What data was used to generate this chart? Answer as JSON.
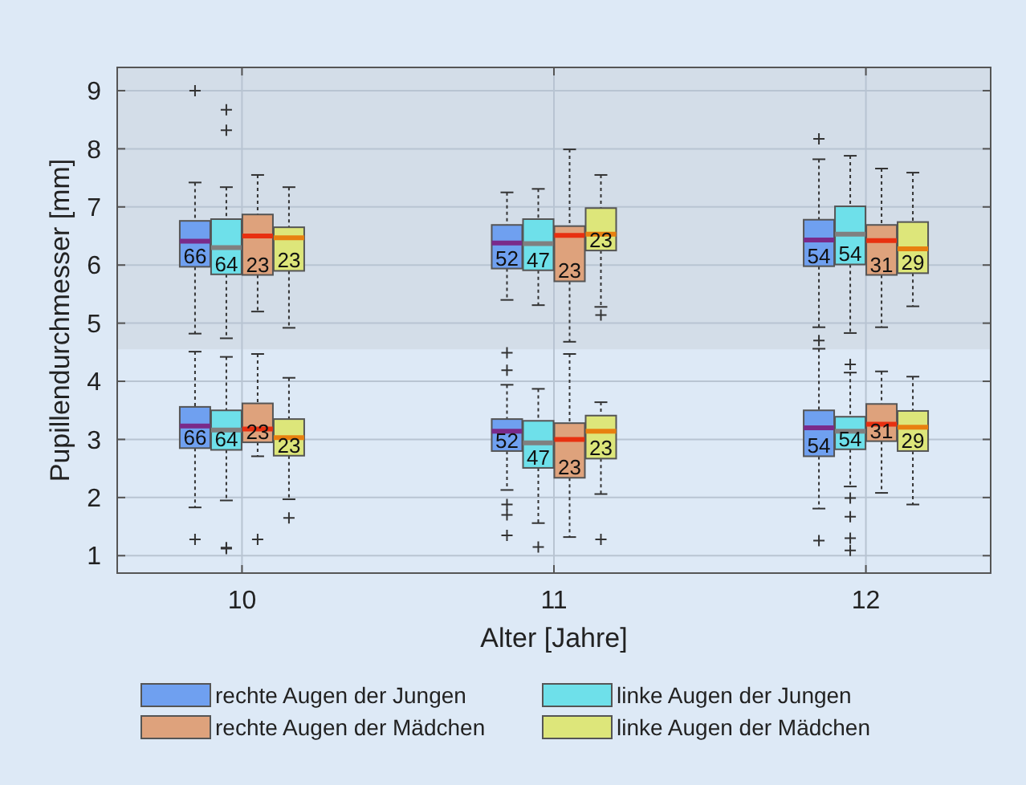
{
  "chart_data": {
    "type": "box",
    "xlabel": "Alter [Jahre]",
    "ylabel": "Pupillendurchmesser [mm]",
    "categories": [
      "10",
      "11",
      "12"
    ],
    "ylim": [
      0.7,
      9.4
    ],
    "yticks": [
      1,
      2,
      3,
      4,
      5,
      6,
      7,
      8,
      9
    ],
    "grid": true,
    "legend": "bottom",
    "bands": [
      {
        "axis": "y",
        "from": 4.55,
        "to": 9.4,
        "color": "#d3dde8"
      }
    ],
    "series": [
      {
        "name": "rechte Augen der Jungen",
        "color": "#6fa0f0",
        "value_labels": [
          "66",
          "52",
          "54"
        ],
        "boxes": [
          {
            "low": 4.82,
            "q1": 5.97,
            "median": 6.41,
            "q3": 6.76,
            "high": 7.42,
            "outliers": [
              9.0
            ]
          },
          {
            "low": 5.4,
            "q1": 5.94,
            "median": 6.38,
            "q3": 6.69,
            "high": 7.25
          },
          {
            "low": 4.93,
            "q1": 5.98,
            "median": 6.43,
            "q3": 6.78,
            "high": 7.82,
            "outliers": [
              8.17
            ]
          }
        ]
      },
      {
        "name": "linke Augen der Jungen",
        "color": "#6ee0ea",
        "value_labels": [
          "64",
          "47",
          "54"
        ],
        "boxes": [
          {
            "low": 4.74,
            "q1": 5.84,
            "median": 6.3,
            "q3": 6.79,
            "high": 7.34,
            "outliers": [
              8.67,
              8.32
            ]
          },
          {
            "low": 5.31,
            "q1": 5.91,
            "median": 6.37,
            "q3": 6.79,
            "high": 7.31
          },
          {
            "low": 4.83,
            "q1": 6.01,
            "median": 6.53,
            "q3": 7.01,
            "high": 7.88
          }
        ]
      },
      {
        "name": "rechte Augen der Mädchen",
        "color": "#dea27c",
        "value_labels": [
          "23",
          "23",
          "31"
        ],
        "boxes": [
          {
            "low": 5.2,
            "q1": 5.83,
            "median": 6.5,
            "q3": 6.87,
            "high": 7.55
          },
          {
            "low": 4.68,
            "q1": 5.72,
            "median": 6.51,
            "q3": 6.67,
            "high": 7.99
          },
          {
            "low": 4.93,
            "q1": 5.83,
            "median": 6.42,
            "q3": 6.69,
            "high": 7.66
          }
        ]
      },
      {
        "name": "linke Augen der Mädchen",
        "color": "#dde67a",
        "value_labels": [
          "23",
          "23",
          "29"
        ],
        "boxes": [
          {
            "low": 4.92,
            "q1": 5.9,
            "median": 6.47,
            "q3": 6.65,
            "high": 7.34
          },
          {
            "low": 5.28,
            "q1": 6.25,
            "median": 6.53,
            "q3": 6.98,
            "high": 7.55,
            "outliers": [
              5.14
            ]
          },
          {
            "low": 5.29,
            "q1": 5.86,
            "median": 6.28,
            "q3": 6.74,
            "high": 7.59
          }
        ]
      },
      {
        "color": "#6fa0f0",
        "value_labels": [
          "66",
          "52",
          "54"
        ],
        "boxes": [
          {
            "low": 1.83,
            "q1": 2.85,
            "median": 3.23,
            "q3": 3.56,
            "high": 4.51,
            "outliers": [
              1.28
            ]
          },
          {
            "low": 2.13,
            "q1": 2.8,
            "median": 3.14,
            "q3": 3.35,
            "high": 3.94,
            "outliers": [
              4.49,
              4.19,
              1.88,
              1.7,
              1.35
            ]
          },
          {
            "low": 1.81,
            "q1": 2.71,
            "median": 3.2,
            "q3": 3.5,
            "high": 4.56,
            "outliers": [
              4.7,
              1.26
            ]
          }
        ]
      },
      {
        "color": "#6ee0ea",
        "value_labels": [
          "64",
          "47",
          "54"
        ],
        "boxes": [
          {
            "low": 1.95,
            "q1": 2.82,
            "median": 3.16,
            "q3": 3.5,
            "high": 4.42,
            "outliers": [
              1.14,
              1.12
            ]
          },
          {
            "low": 1.56,
            "q1": 2.51,
            "median": 2.94,
            "q3": 3.32,
            "high": 3.87,
            "outliers": [
              1.15
            ]
          },
          {
            "low": 2.19,
            "q1": 2.83,
            "median": 3.14,
            "q3": 3.39,
            "high": 4.15,
            "outliers": [
              4.29,
              1.99,
              1.67,
              1.3,
              1.09
            ]
          }
        ]
      },
      {
        "color": "#dea27c",
        "value_labels": [
          "23",
          "23",
          "31"
        ],
        "boxes": [
          {
            "low": 2.71,
            "q1": 2.95,
            "median": 3.18,
            "q3": 3.62,
            "high": 4.47,
            "outliers": [
              1.28
            ]
          },
          {
            "low": 1.32,
            "q1": 2.34,
            "median": 3.0,
            "q3": 3.28,
            "high": 4.47
          },
          {
            "low": 2.08,
            "q1": 2.97,
            "median": 3.26,
            "q3": 3.61,
            "high": 4.17
          }
        ]
      },
      {
        "color": "#dde67a",
        "value_labels": [
          "23",
          "23",
          "29"
        ],
        "boxes": [
          {
            "low": 1.97,
            "q1": 2.72,
            "median": 3.03,
            "q3": 3.35,
            "high": 4.06,
            "outliers": [
              1.65
            ]
          },
          {
            "low": 2.06,
            "q1": 2.67,
            "median": 3.14,
            "q3": 3.41,
            "high": 3.64,
            "outliers": [
              1.28
            ]
          },
          {
            "low": 1.88,
            "q1": 2.8,
            "median": 3.21,
            "q3": 3.49,
            "high": 4.08
          }
        ]
      }
    ]
  }
}
